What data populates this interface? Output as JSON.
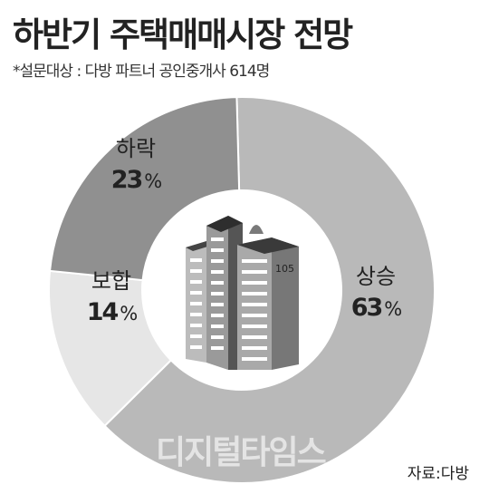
{
  "title": "하반기 주택매매시장 전망",
  "subtitle": "*설문대상 : 다방 파트너 공인중개사 614명",
  "source": "자료:다방",
  "watermark": "디지털타임스",
  "building_number": "105",
  "colors": {
    "상승": "#b9b9b9",
    "보합": "#e6e6e6",
    "하락": "#909090",
    "stroke": "#ffffff"
  },
  "chart_data": {
    "type": "pie",
    "donut": true,
    "title": "하반기 주택매매시장 전망",
    "unit": "%",
    "categories": [
      "상승",
      "보합",
      "하락"
    ],
    "values": [
      63,
      14,
      23
    ]
  }
}
